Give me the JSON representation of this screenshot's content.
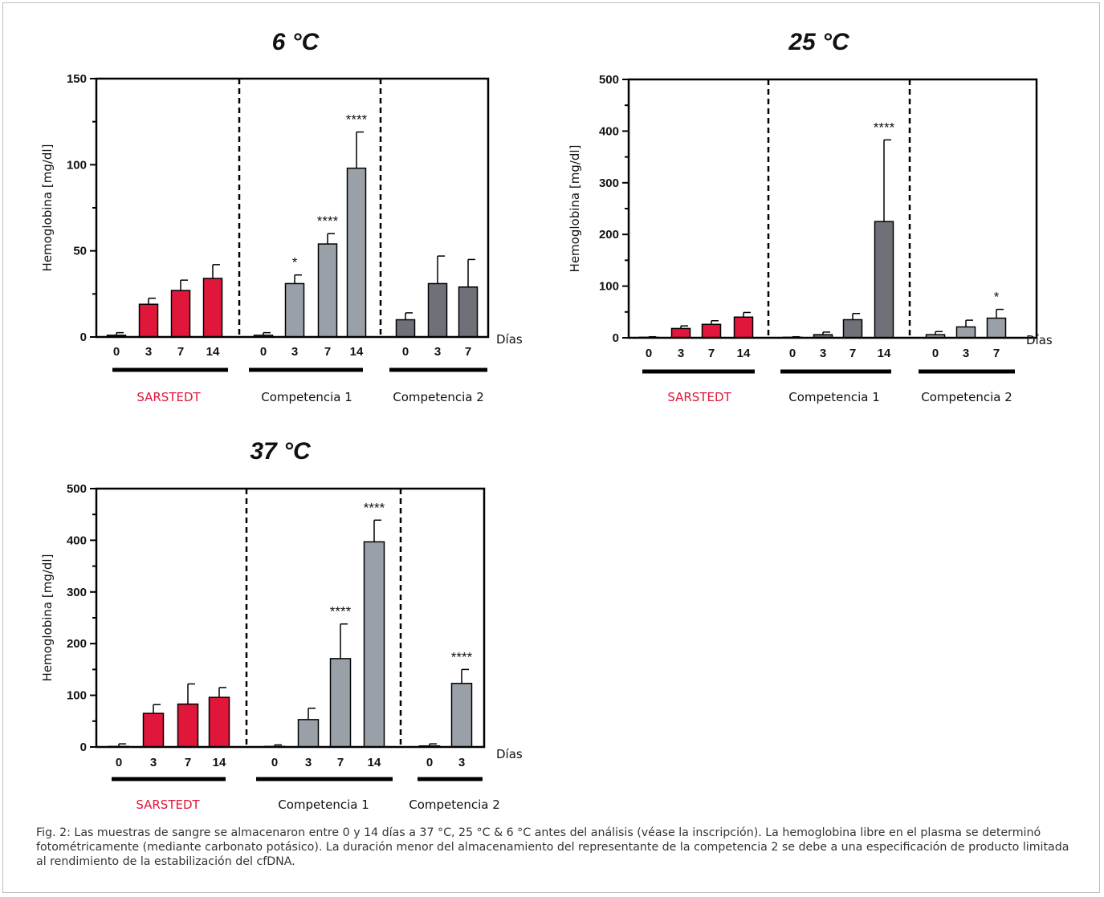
{
  "colors": {
    "sarstedt": "#e0163a",
    "competencia1": "#9aa0a8",
    "competencia2": "#6e7278",
    "axis": "#000000",
    "caption": "#333333"
  },
  "chart_data": [
    {
      "type": "bar",
      "title": "6 °C",
      "ylabel": "Hemoglobina [mg/dl]",
      "xlabel": "Días",
      "ylim": [
        0,
        150
      ],
      "yticks": [
        0,
        50,
        100,
        150
      ],
      "grid": false,
      "groups": [
        {
          "name": "SARSTEDT",
          "color": "#e0163a",
          "categories": [
            "0",
            "3",
            "7",
            "14"
          ],
          "values": [
            1,
            19,
            27,
            34
          ],
          "errors": [
            1.5,
            3.5,
            6,
            8
          ],
          "significance": [
            "",
            "",
            "",
            ""
          ]
        },
        {
          "name": "Competencia 1",
          "color": "#9aa0a8",
          "categories": [
            "0",
            "3",
            "7",
            "14"
          ],
          "values": [
            1,
            31,
            54,
            98
          ],
          "errors": [
            1.5,
            5,
            6,
            21
          ],
          "significance": [
            "",
            "*",
            "****",
            "****"
          ]
        },
        {
          "name": "Competencia 2",
          "color": "#6e7278",
          "categories": [
            "0",
            "3",
            "7"
          ],
          "values": [
            10,
            31,
            29
          ],
          "errors": [
            4,
            16,
            16
          ],
          "significance": [
            "",
            "",
            ""
          ]
        }
      ]
    },
    {
      "type": "bar",
      "title": "25 °C",
      "ylabel": "Hemoglobina [mg/dl]",
      "xlabel": "Días",
      "ylim": [
        0,
        500
      ],
      "yticks": [
        0,
        100,
        200,
        300,
        400,
        500
      ],
      "grid": false,
      "groups": [
        {
          "name": "SARSTEDT",
          "color": "#e0163a",
          "categories": [
            "0",
            "3",
            "7",
            "14"
          ],
          "values": [
            1,
            18,
            26,
            40
          ],
          "errors": [
            1,
            5,
            7,
            9
          ],
          "significance": [
            "",
            "",
            "",
            ""
          ]
        },
        {
          "name": "Competencia 1",
          "color": "#6e7278",
          "categories": [
            "0",
            "3",
            "7",
            "14"
          ],
          "values": [
            1,
            6,
            35,
            225
          ],
          "errors": [
            1,
            5,
            12,
            158
          ],
          "significance": [
            "",
            "",
            "",
            "****"
          ]
        },
        {
          "name": "Competencia 2",
          "color": "#9aa0a8",
          "categories": [
            "0",
            "3",
            "7"
          ],
          "values": [
            6,
            21,
            38
          ],
          "errors": [
            6,
            13,
            17
          ],
          "significance": [
            "",
            "",
            "*"
          ]
        }
      ]
    },
    {
      "type": "bar",
      "title": "37 °C",
      "ylabel": "Hemoglobina [mg/dl]",
      "xlabel": "Días",
      "ylim": [
        0,
        500
      ],
      "yticks": [
        0,
        100,
        200,
        300,
        400,
        500
      ],
      "grid": false,
      "groups": [
        {
          "name": "SARSTEDT",
          "color": "#e0163a",
          "categories": [
            "0",
            "3",
            "7",
            "14"
          ],
          "values": [
            1,
            65,
            83,
            96
          ],
          "errors": [
            5,
            17,
            39,
            19
          ],
          "significance": [
            "",
            "",
            "",
            ""
          ]
        },
        {
          "name": "Competencia 1",
          "color": "#9aa0a8",
          "categories": [
            "0",
            "3",
            "7",
            "14"
          ],
          "values": [
            1,
            53,
            171,
            397
          ],
          "errors": [
            3,
            22,
            67,
            42
          ],
          "significance": [
            "",
            "",
            "****",
            "****"
          ]
        },
        {
          "name": "Competencia 2",
          "color": "#9aa0a8",
          "categories": [
            "0",
            "3"
          ],
          "values": [
            2,
            123
          ],
          "errors": [
            4,
            27
          ],
          "significance": [
            "",
            "****"
          ]
        }
      ]
    }
  ],
  "caption": "Fig. 2: Las muestras de sangre se almacenaron entre 0 y 14 días a 37 °C, 25 °C & 6 °C antes del análisis (véase la inscripción). La hemoglobina libre en el plasma se determinó fotométricamente (mediante carbonato potásico). La duración menor del almacenamiento del representante de la competencia 2 se debe a una especificación de producto limitada al rendimiento de la estabilización del cfDNA."
}
